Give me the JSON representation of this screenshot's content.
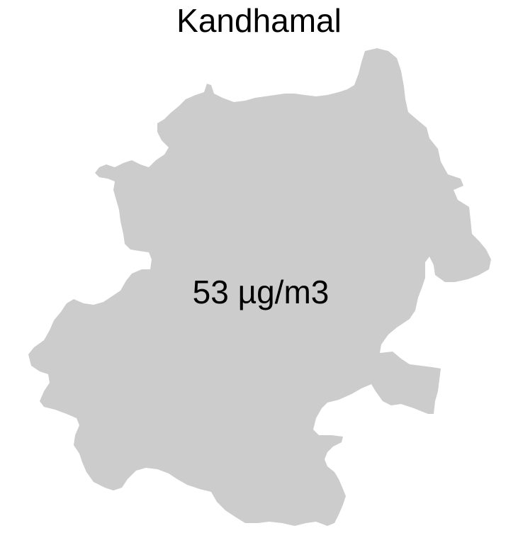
{
  "title": "Kandhamal",
  "region": {
    "name": "Kandhamal",
    "value_label": "53 µg/m3",
    "value": 53,
    "unit": "µg/m3",
    "fill_color": "#cccccc"
  }
}
